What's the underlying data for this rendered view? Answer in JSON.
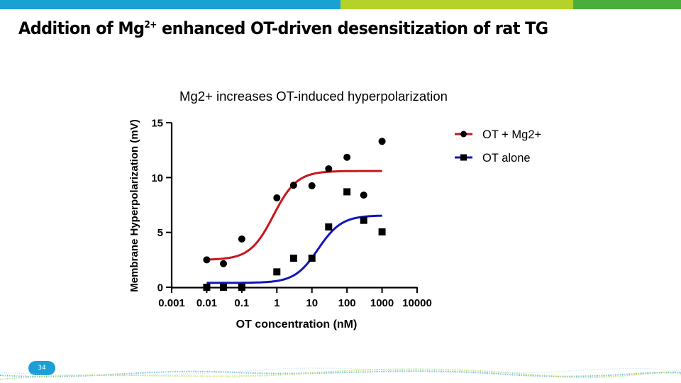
{
  "slide": {
    "title_pre": "Addition of Mg",
    "title_sup": "2+",
    "title_post": " enhanced OT-driven desensitization of rat TG",
    "page_number": "34",
    "colors": {
      "bar_blue": "#17a2d3",
      "bar_lime": "#b5d22a",
      "bar_green": "#4aae3c",
      "badge": "#1d9fd6"
    }
  },
  "chart_data": {
    "type": "scatter",
    "title": "Mg2+ increases OT-induced hyperpolarization",
    "xlabel": "OT concentration (nM)",
    "ylabel": "Membrane Hyperpolarization (mV)",
    "xscale": "log",
    "xlim": [
      0.001,
      10000
    ],
    "ylim": [
      0,
      15
    ],
    "xticks": [
      0.001,
      0.01,
      0.1,
      1,
      10,
      100,
      1000,
      10000
    ],
    "xtick_labels": [
      "0.001",
      "0.01",
      "0.1",
      "1",
      "10",
      "100",
      "1000",
      "10000"
    ],
    "yticks": [
      0,
      5,
      10,
      15
    ],
    "ytick_labels": [
      "0",
      "5",
      "10",
      "15"
    ],
    "grid": false,
    "legend_position": "top-right",
    "series": [
      {
        "name": "OT + Mg2+",
        "marker": "circle",
        "line_color": "#c8161d",
        "x": [
          0.01,
          0.03,
          0.1,
          1,
          3,
          10,
          30,
          100,
          300,
          1000
        ],
        "y": [
          2.5,
          2.15,
          4.4,
          8.15,
          9.3,
          9.25,
          10.8,
          11.85,
          8.4,
          13.3
        ],
        "fit": {
          "model": "sigmoidal dose-response",
          "bottom": 2.5,
          "top": 10.6,
          "ec50": 0.8,
          "hill": 1.3
        }
      },
      {
        "name": "OT alone",
        "marker": "square",
        "line_color": "#1116b8",
        "x": [
          0.01,
          0.03,
          0.1,
          1,
          3,
          10,
          30,
          100,
          300,
          1000
        ],
        "y": [
          0,
          0,
          0,
          1.4,
          2.65,
          2.65,
          5.5,
          8.7,
          6.1,
          5.05
        ],
        "fit": {
          "model": "sigmoidal dose-response",
          "bottom": 0.4,
          "top": 6.55,
          "ec50": 15,
          "hill": 1.3
        }
      }
    ]
  }
}
